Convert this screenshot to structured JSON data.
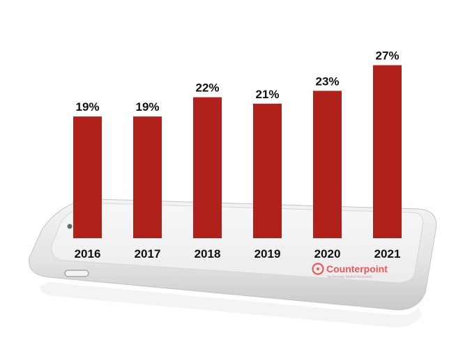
{
  "chart_data": {
    "type": "bar",
    "categories": [
      "2016",
      "2017",
      "2018",
      "2019",
      "2020",
      "2021"
    ],
    "values": [
      19,
      19,
      22,
      21,
      23,
      27
    ],
    "value_labels": [
      "19%",
      "19%",
      "22%",
      "21%",
      "23%",
      "27%"
    ],
    "title": "",
    "xlabel": "",
    "ylabel": "",
    "ylim": [
      0,
      27
    ],
    "grid": false,
    "bar_color": "#b0211b"
  },
  "brand": {
    "logo_name": "counterpoint-logo",
    "logo_text": "Counterpoint",
    "logo_tagline": "Technology Market Research",
    "logo_color": "#e8595c"
  }
}
